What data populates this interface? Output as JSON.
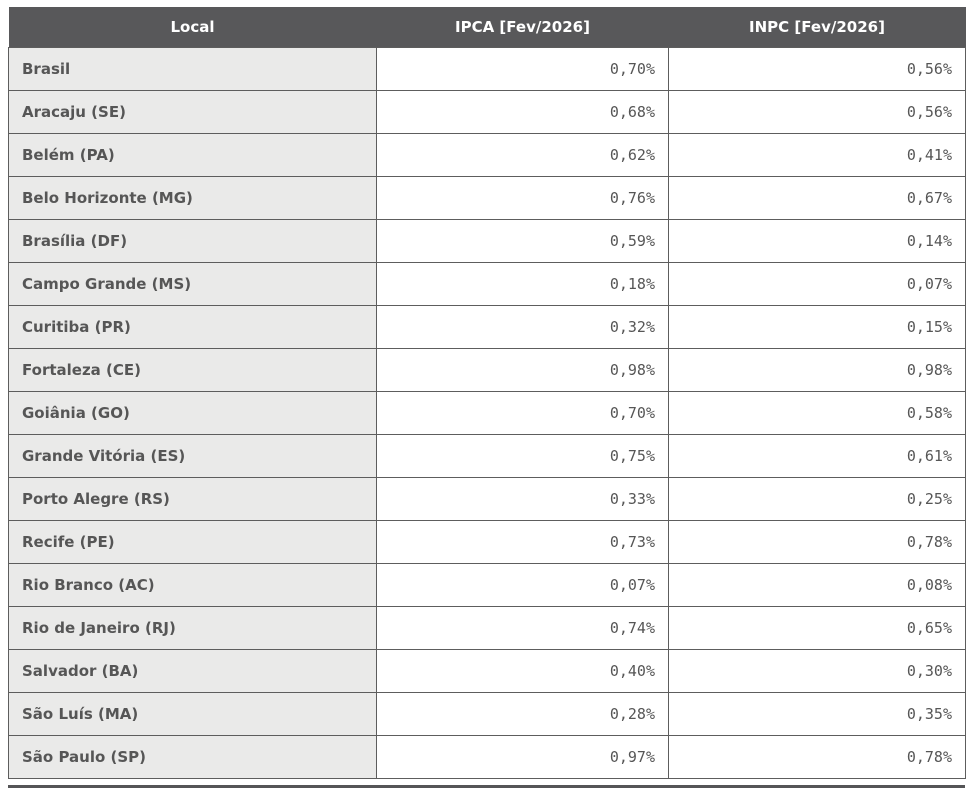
{
  "chart_data": {
    "type": "table",
    "columns": [
      "Local",
      "IPCA [Fev/2026]",
      "INPC [Fev/2026]"
    ],
    "rows": [
      {
        "local": "Brasil",
        "ipca": "0,70%",
        "inpc": "0,56%"
      },
      {
        "local": "Aracaju (SE)",
        "ipca": "0,68%",
        "inpc": "0,56%"
      },
      {
        "local": "Belém (PA)",
        "ipca": "0,62%",
        "inpc": "0,41%"
      },
      {
        "local": "Belo Horizonte (MG)",
        "ipca": "0,76%",
        "inpc": "0,67%"
      },
      {
        "local": "Brasília (DF)",
        "ipca": "0,59%",
        "inpc": "0,14%"
      },
      {
        "local": "Campo Grande (MS)",
        "ipca": "0,18%",
        "inpc": "0,07%"
      },
      {
        "local": "Curitiba (PR)",
        "ipca": "0,32%",
        "inpc": "0,15%"
      },
      {
        "local": "Fortaleza (CE)",
        "ipca": "0,98%",
        "inpc": "0,98%"
      },
      {
        "local": "Goiânia (GO)",
        "ipca": "0,70%",
        "inpc": "0,58%"
      },
      {
        "local": "Grande Vitória (ES)",
        "ipca": "0,75%",
        "inpc": "0,61%"
      },
      {
        "local": "Porto Alegre (RS)",
        "ipca": "0,33%",
        "inpc": "0,25%"
      },
      {
        "local": "Recife (PE)",
        "ipca": "0,73%",
        "inpc": "0,78%"
      },
      {
        "local": "Rio Branco (AC)",
        "ipca": "0,07%",
        "inpc": "0,08%"
      },
      {
        "local": "Rio de Janeiro (RJ)",
        "ipca": "0,74%",
        "inpc": "0,65%"
      },
      {
        "local": "Salvador (BA)",
        "ipca": "0,40%",
        "inpc": "0,30%"
      },
      {
        "local": "São Luís (MA)",
        "ipca": "0,28%",
        "inpc": "0,35%"
      },
      {
        "local": "São Paulo (SP)",
        "ipca": "0,97%",
        "inpc": "0,78%"
      }
    ]
  },
  "colors": {
    "header_bg": "#58585a",
    "header_text": "#ffffff",
    "label_cell_bg": "#eaeae9",
    "value_cell_bg": "#ffffff",
    "border": "#5d5d5d",
    "text": "#565656"
  }
}
